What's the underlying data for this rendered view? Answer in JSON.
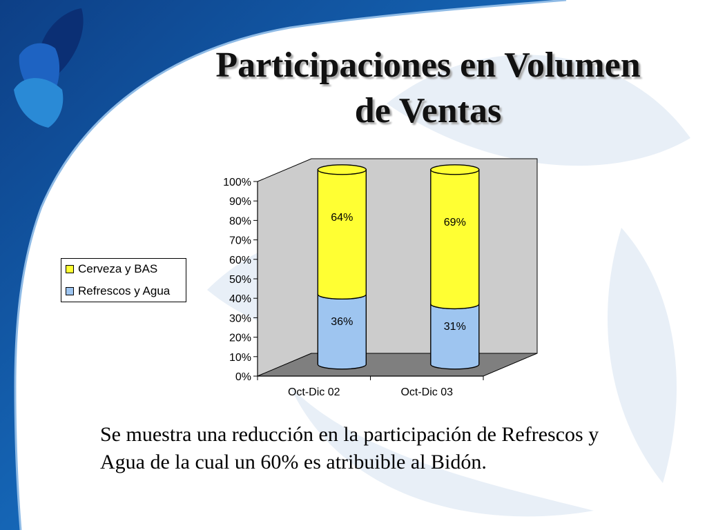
{
  "slide": {
    "title_lines": [
      "Participaciones en Volumen",
      "de Ventas"
    ],
    "caption_lines": [
      "Se muestra una reducción en la participación de Refrescos y",
      "Agua de la cual un 60% es atribuible al Bidón."
    ],
    "colors": {
      "banner_blue": "#1565b5",
      "banner_dark": "#0d3f86",
      "watermark": "#e6eef6"
    }
  },
  "chart_data": {
    "type": "bar",
    "stacked": true,
    "three_d": true,
    "bar_shape": "cylinder",
    "categories": [
      "Oct-Dic 02",
      "Oct-Dic 03"
    ],
    "series": [
      {
        "name": "Refrescos y Agua",
        "values": [
          36,
          31
        ],
        "labels": [
          "36%",
          "31%"
        ],
        "color": "#9ec5f0"
      },
      {
        "name": "Cerveza y BAS",
        "values": [
          64,
          69
        ],
        "labels": [
          "64%",
          "69%"
        ],
        "color": "#ffff33"
      }
    ],
    "legend_order": [
      "Cerveza y BAS",
      "Refrescos y Agua"
    ],
    "y_ticks": [
      "0%",
      "10%",
      "20%",
      "30%",
      "40%",
      "50%",
      "60%",
      "70%",
      "80%",
      "90%",
      "100%"
    ],
    "ylim": [
      0,
      100
    ],
    "legend_position": "left",
    "wall_color": "#cccccc",
    "floor_color": "#7f7f7f",
    "grid": false
  }
}
